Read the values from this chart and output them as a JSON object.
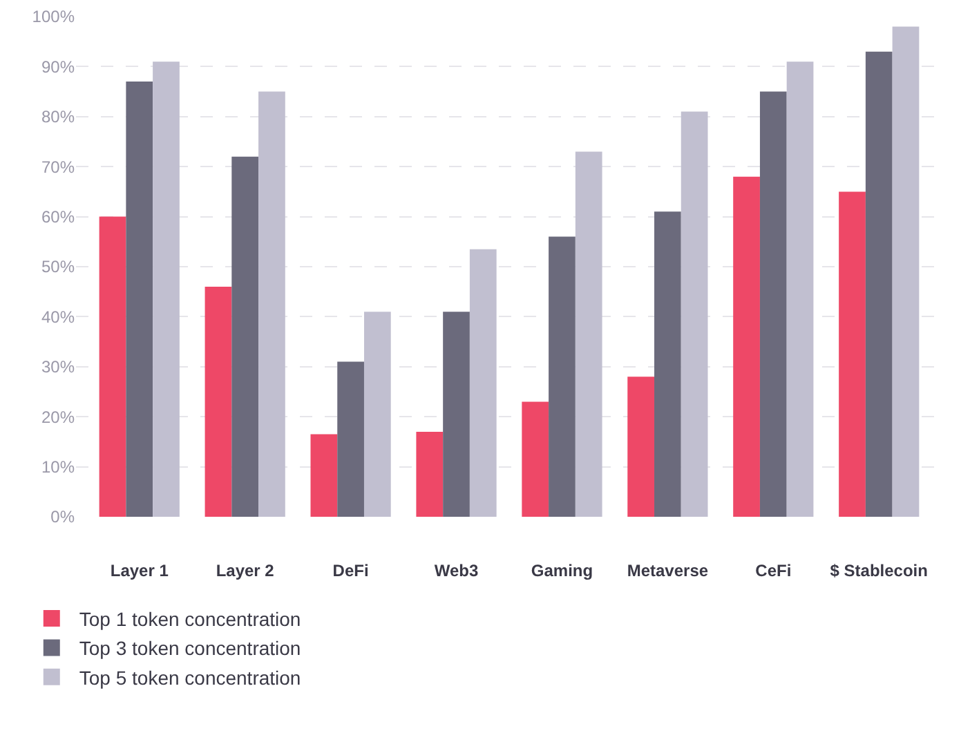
{
  "chart_data": {
    "type": "bar",
    "categories": [
      "Layer 1",
      "Layer 2",
      "DeFi",
      "Web3",
      "Gaming",
      "Metaverse",
      "CeFi",
      "$ Stablecoin"
    ],
    "series": [
      {
        "name": "Top 1 token concentration",
        "color": "#ee4867",
        "values": [
          60,
          46,
          16.5,
          17,
          23,
          28,
          68,
          65
        ]
      },
      {
        "name": "Top 3 token concentration",
        "color": "#6b6a7c",
        "values": [
          87,
          72,
          31,
          41,
          56,
          61,
          85,
          93
        ]
      },
      {
        "name": "Top 5 token concentration",
        "color": "#c1bfd0",
        "values": [
          91,
          85,
          41,
          53.5,
          73,
          81,
          91,
          98
        ]
      }
    ],
    "ylim": [
      0,
      100
    ],
    "yticks": [
      {
        "value": 0,
        "label": "0%"
      },
      {
        "value": 10,
        "label": "10%"
      },
      {
        "value": 20,
        "label": "20%"
      },
      {
        "value": 30,
        "label": "30%"
      },
      {
        "value": 40,
        "label": "40%"
      },
      {
        "value": 50,
        "label": "50%"
      },
      {
        "value": 60,
        "label": "60%"
      },
      {
        "value": 70,
        "label": "70%"
      },
      {
        "value": 80,
        "label": "80%"
      },
      {
        "value": 90,
        "label": "90%"
      },
      {
        "value": 100,
        "label": "100%"
      }
    ],
    "grid": true,
    "legend": "bottom left"
  }
}
